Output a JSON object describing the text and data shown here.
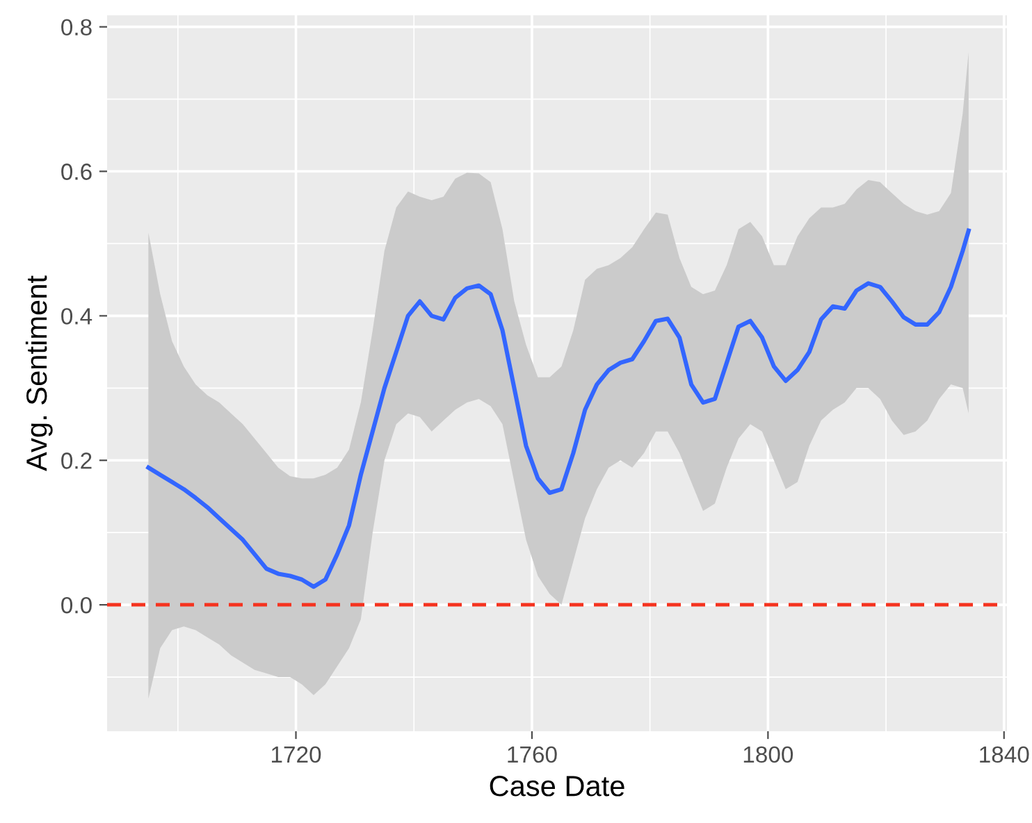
{
  "chart_data": {
    "type": "line",
    "xlabel": "Case Date",
    "ylabel": "Avg. Sentiment",
    "x": [
      1695,
      1697,
      1699,
      1701,
      1703,
      1705,
      1707,
      1709,
      1711,
      1713,
      1715,
      1717,
      1719,
      1721,
      1723,
      1725,
      1727,
      1729,
      1731,
      1733,
      1735,
      1737,
      1739,
      1741,
      1743,
      1745,
      1747,
      1749,
      1751,
      1753,
      1755,
      1757,
      1759,
      1761,
      1763,
      1765,
      1767,
      1769,
      1771,
      1773,
      1775,
      1777,
      1779,
      1781,
      1783,
      1785,
      1787,
      1789,
      1791,
      1793,
      1795,
      1797,
      1799,
      1801,
      1803,
      1805,
      1807,
      1809,
      1811,
      1813,
      1815,
      1817,
      1819,
      1821,
      1823,
      1825,
      1827,
      1829,
      1831,
      1833,
      1834
    ],
    "series": [
      {
        "color": "#3366ff",
        "values": [
          0.19,
          0.18,
          0.17,
          0.16,
          0.148,
          0.135,
          0.12,
          0.105,
          0.09,
          0.07,
          0.05,
          0.043,
          0.04,
          0.035,
          0.025,
          0.035,
          0.07,
          0.11,
          0.18,
          0.24,
          0.3,
          0.35,
          0.4,
          0.42,
          0.4,
          0.395,
          0.425,
          0.438,
          0.442,
          0.43,
          0.38,
          0.3,
          0.22,
          0.175,
          0.155,
          0.16,
          0.21,
          0.27,
          0.305,
          0.325,
          0.335,
          0.34,
          0.365,
          0.393,
          0.396,
          0.37,
          0.305,
          0.28,
          0.285,
          0.335,
          0.385,
          0.393,
          0.37,
          0.33,
          0.31,
          0.325,
          0.35,
          0.395,
          0.413,
          0.41,
          0.435,
          0.445,
          0.44,
          0.42,
          0.398,
          0.388,
          0.388,
          0.405,
          0.44,
          0.49,
          0.518
        ],
        "upper": [
          0.515,
          0.43,
          0.365,
          0.33,
          0.305,
          0.29,
          0.28,
          0.265,
          0.25,
          0.23,
          0.21,
          0.19,
          0.178,
          0.175,
          0.175,
          0.18,
          0.19,
          0.215,
          0.28,
          0.38,
          0.49,
          0.55,
          0.572,
          0.565,
          0.56,
          0.565,
          0.59,
          0.598,
          0.597,
          0.585,
          0.52,
          0.42,
          0.36,
          0.315,
          0.315,
          0.33,
          0.38,
          0.45,
          0.465,
          0.47,
          0.48,
          0.495,
          0.52,
          0.543,
          0.54,
          0.48,
          0.44,
          0.43,
          0.435,
          0.47,
          0.52,
          0.53,
          0.51,
          0.47,
          0.47,
          0.51,
          0.535,
          0.55,
          0.55,
          0.555,
          0.575,
          0.588,
          0.585,
          0.57,
          0.555,
          0.545,
          0.54,
          0.545,
          0.57,
          0.68,
          0.765
        ],
        "lower": [
          -0.13,
          -0.06,
          -0.035,
          -0.03,
          -0.035,
          -0.045,
          -0.055,
          -0.07,
          -0.08,
          -0.09,
          -0.095,
          -0.1,
          -0.1,
          -0.11,
          -0.125,
          -0.11,
          -0.085,
          -0.06,
          -0.02,
          0.1,
          0.2,
          0.25,
          0.265,
          0.26,
          0.24,
          0.255,
          0.27,
          0.28,
          0.285,
          0.275,
          0.25,
          0.17,
          0.09,
          0.04,
          0.015,
          0.0,
          0.06,
          0.12,
          0.16,
          0.19,
          0.2,
          0.19,
          0.21,
          0.24,
          0.24,
          0.21,
          0.17,
          0.13,
          0.14,
          0.19,
          0.23,
          0.25,
          0.24,
          0.2,
          0.16,
          0.17,
          0.22,
          0.255,
          0.27,
          0.28,
          0.3,
          0.3,
          0.285,
          0.255,
          0.235,
          0.24,
          0.255,
          0.285,
          0.305,
          0.3,
          0.265
        ]
      }
    ],
    "xlim": [
      1688,
      1840.5
    ],
    "ylim": [
      -0.175,
      0.816
    ],
    "xticks": [
      1720,
      1760,
      1800,
      1840
    ],
    "yticks": [
      {
        "value": 0,
        "label": "0.0"
      },
      {
        "value": 0.2,
        "label": "0.2"
      },
      {
        "value": 0.4,
        "label": "0.4"
      },
      {
        "value": 0.6,
        "label": "0.6"
      },
      {
        "value": 0.8,
        "label": "0.8"
      }
    ],
    "grid": true,
    "marker": "none",
    "line_style": "solid",
    "ref_lines": [
      {
        "axis": "y",
        "value": 0,
        "color": "#f5331f",
        "line_style": "dashed"
      }
    ]
  }
}
